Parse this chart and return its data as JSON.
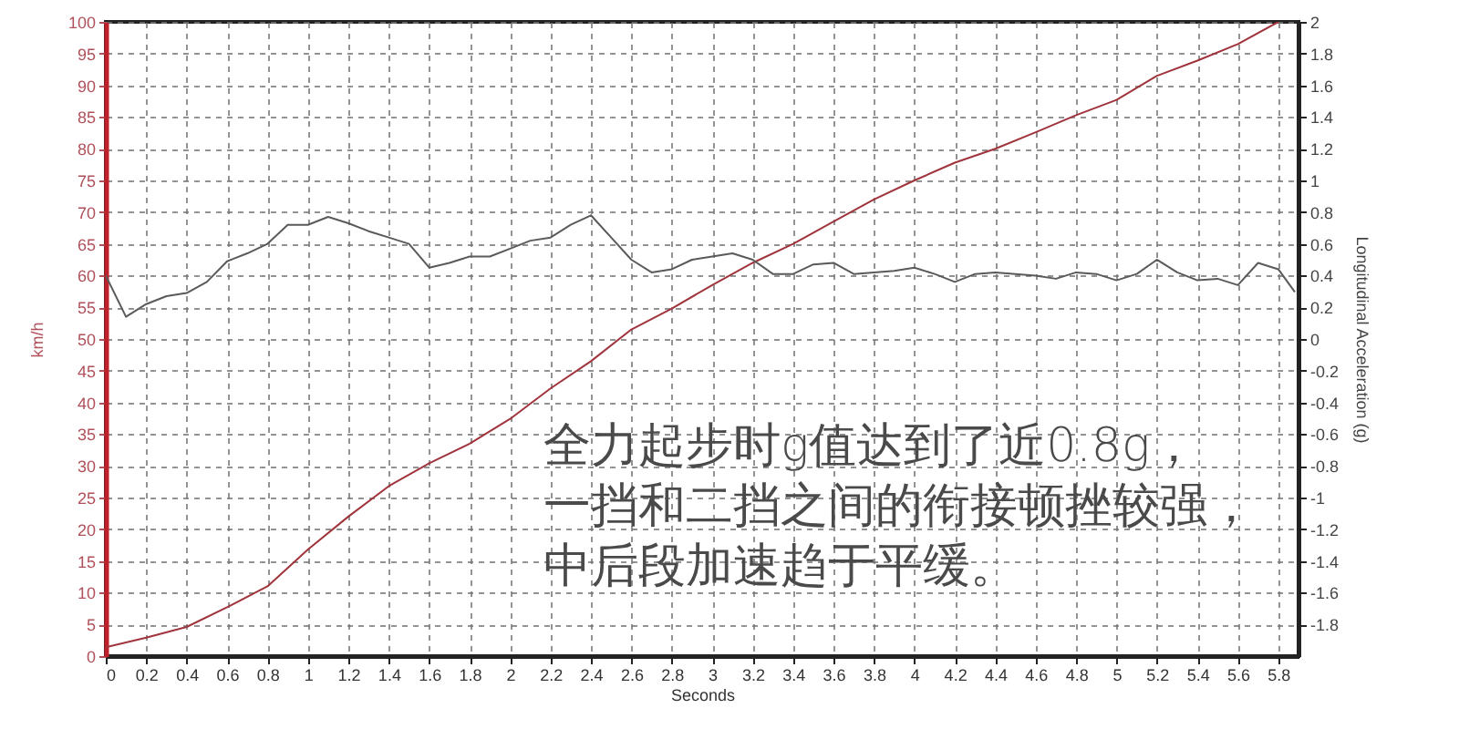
{
  "chart_data": {
    "type": "line",
    "xlabel": "Seconds",
    "ylabel": "km/h",
    "y2label": "Longitudinal Acceleration (g)",
    "annotations": [
      "全力起步时g值达到了近0.8g，",
      "一挡和二挡之间的衔接顿挫较强，",
      "中后段加速趋于平缓。"
    ],
    "xlim": [
      0,
      5.9
    ],
    "xticks": [
      0,
      0.2,
      0.4,
      0.6,
      0.8,
      1,
      1.2,
      1.4,
      1.6,
      1.8,
      2,
      2.2,
      2.4,
      2.6,
      2.8,
      3,
      3.2,
      3.4,
      3.6,
      3.8,
      4,
      4.2,
      4.4,
      4.6,
      4.8,
      5,
      5.2,
      5.4,
      5.6,
      5.8
    ],
    "ylim": [
      0,
      100
    ],
    "yticks": [
      0,
      5,
      10,
      15,
      20,
      25,
      30,
      35,
      40,
      45,
      50,
      55,
      60,
      65,
      70,
      75,
      80,
      85,
      90,
      95,
      100
    ],
    "y2lim": [
      -2,
      2
    ],
    "y2ticks": [
      -1.8,
      -1.6,
      -1.4,
      -1.2,
      -1,
      -0.8,
      -0.6,
      -0.4,
      -0.2,
      0,
      0.2,
      0.4,
      0.6,
      0.8,
      1,
      1.2,
      1.4,
      1.6,
      1.8,
      2
    ],
    "grid": true,
    "series": [
      {
        "color": "#a0343c",
        "x": [
          0,
          0.2,
          0.4,
          0.6,
          0.8,
          1,
          1.2,
          1.4,
          1.6,
          1.8,
          2,
          2.2,
          2.4,
          2.6,
          2.8,
          3,
          3.2,
          3.4,
          3.6,
          3.8,
          4,
          4.2,
          4.4,
          4.6,
          4.8,
          5,
          5.2,
          5.4,
          5.6,
          5.8
        ],
        "values": [
          1.4,
          2.9,
          4.6,
          7.7,
          11,
          16.8,
          22,
          26.8,
          30.4,
          33.5,
          37.4,
          42.2,
          46.5,
          51.5,
          54.8,
          58.5,
          62,
          65,
          68.5,
          72,
          75,
          77.8,
          80,
          82.6,
          85.3,
          87.7,
          91.5,
          93.9,
          96.5,
          100
        ]
      },
      {
        "color": "#5a5a5a",
        "axis": "y2",
        "x": [
          0,
          0.1,
          0.2,
          0.3,
          0.4,
          0.5,
          0.6,
          0.7,
          0.8,
          0.9,
          1,
          1.1,
          1.2,
          1.3,
          1.4,
          1.5,
          1.6,
          1.7,
          1.8,
          1.9,
          2,
          2.1,
          2.2,
          2.3,
          2.4,
          2.5,
          2.6,
          2.7,
          2.8,
          2.9,
          3,
          3.1,
          3.2,
          3.3,
          3.4,
          3.5,
          3.6,
          3.7,
          3.8,
          3.9,
          4,
          4.1,
          4.2,
          4.3,
          4.4,
          4.5,
          4.6,
          4.7,
          4.8,
          4.9,
          5,
          5.1,
          5.2,
          5.3,
          5.4,
          5.5,
          5.6,
          5.7,
          5.8,
          5.88
        ],
        "values": [
          0.4,
          0.14,
          0.22,
          0.27,
          0.29,
          0.36,
          0.49,
          0.54,
          0.6,
          0.72,
          0.72,
          0.77,
          0.73,
          0.68,
          0.64,
          0.6,
          0.45,
          0.48,
          0.52,
          0.52,
          0.57,
          0.62,
          0.64,
          0.72,
          0.78,
          0.64,
          0.5,
          0.42,
          0.44,
          0.5,
          0.52,
          0.54,
          0.5,
          0.41,
          0.41,
          0.47,
          0.48,
          0.41,
          0.42,
          0.43,
          0.45,
          0.41,
          0.36,
          0.41,
          0.42,
          0.41,
          0.4,
          0.38,
          0.42,
          0.41,
          0.37,
          0.41,
          0.5,
          0.42,
          0.37,
          0.38,
          0.34,
          0.48,
          0.44,
          0.3
        ]
      }
    ]
  }
}
